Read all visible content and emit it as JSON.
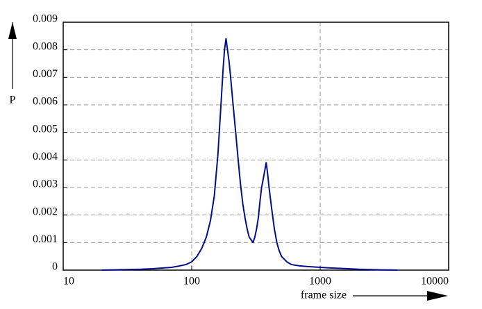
{
  "chart_data": {
    "type": "line",
    "xlabel": "frame size",
    "ylabel": "P",
    "xscale": "log",
    "xlim": [
      10,
      10000
    ],
    "xticks": [
      10,
      100,
      1000,
      10000
    ],
    "ylim": [
      0,
      0.009
    ],
    "yticks": [
      0,
      0.001,
      0.002,
      0.003,
      0.004,
      0.005,
      0.006,
      0.007,
      0.008,
      0.009
    ],
    "grid": true,
    "color": "#00108a",
    "x": [
      20,
      30,
      40,
      50,
      60,
      70,
      80,
      90,
      100,
      110,
      120,
      130,
      140,
      150,
      160,
      170,
      175,
      180,
      185,
      190,
      195,
      200,
      210,
      220,
      230,
      240,
      250,
      260,
      270,
      280,
      290,
      300,
      310,
      320,
      330,
      340,
      350,
      360,
      370,
      380,
      390,
      400,
      420,
      440,
      460,
      480,
      500,
      550,
      600,
      700,
      800,
      1000,
      1200,
      1500,
      2000,
      3000,
      4000
    ],
    "values": [
      0,
      2e-05,
      3e-05,
      5e-05,
      8e-05,
      0.0001,
      0.00015,
      0.0002,
      0.0003,
      0.0005,
      0.0008,
      0.0012,
      0.0018,
      0.0027,
      0.0042,
      0.0062,
      0.0072,
      0.008,
      0.0084,
      0.008,
      0.0076,
      0.0071,
      0.006,
      0.005,
      0.004,
      0.0031,
      0.0024,
      0.0019,
      0.0015,
      0.0012,
      0.0011,
      0.001,
      0.0012,
      0.0015,
      0.0019,
      0.0025,
      0.003,
      0.0033,
      0.0036,
      0.0039,
      0.0035,
      0.003,
      0.0022,
      0.0015,
      0.001,
      0.0007,
      0.0005,
      0.0003,
      0.0002,
      0.00015,
      0.00013,
      0.0001,
      8e-05,
      6e-05,
      3e-05,
      1e-05,
      0
    ]
  }
}
